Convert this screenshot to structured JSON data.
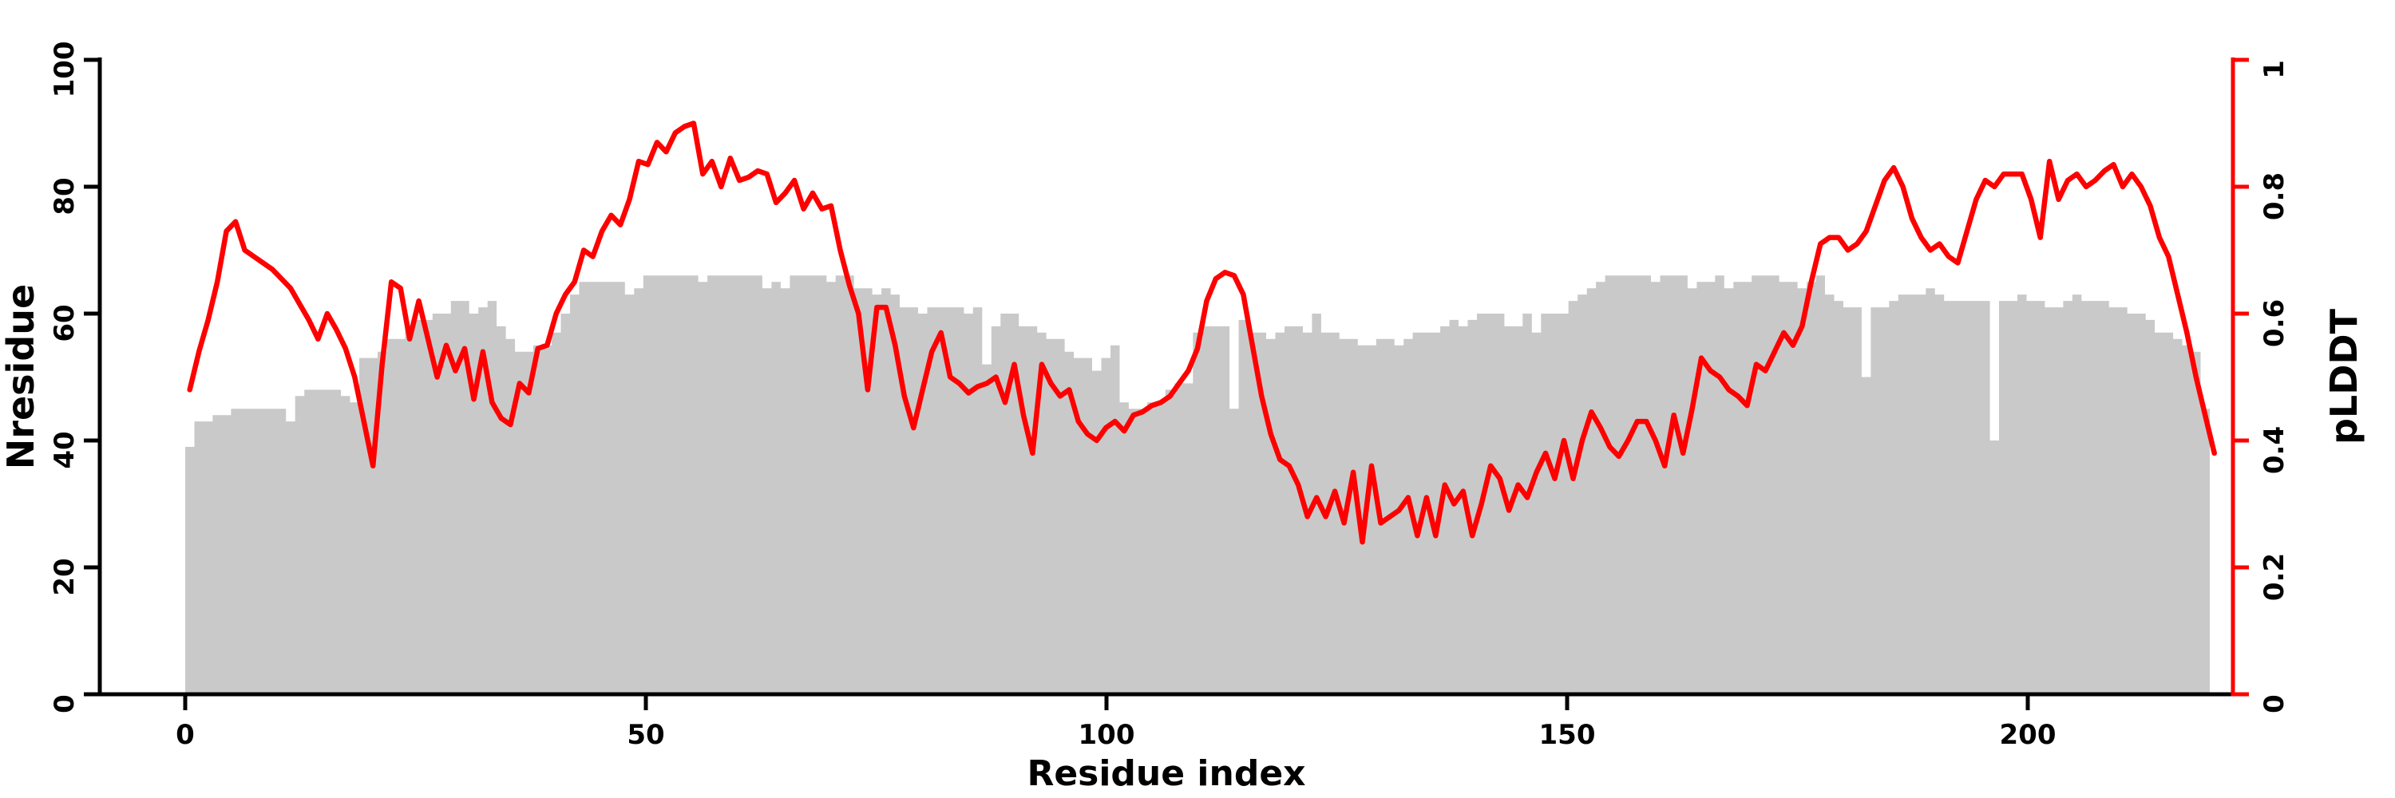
{
  "chart_data": {
    "type": "combo",
    "xlabel": "Residue index",
    "ylabel_left": "Nresidue",
    "ylabel_right": "pLDDT",
    "x_ticks": [
      0,
      50,
      100,
      150,
      200
    ],
    "y_ticks_left": [
      0,
      20,
      40,
      60,
      80,
      100
    ],
    "y_ticks_right": [
      "0",
      "0.2",
      "0.4",
      "0.6",
      "0.8",
      "1"
    ],
    "xlim": [
      0,
      222
    ],
    "ylim_left": [
      0,
      100
    ],
    "ylim_right": [
      0,
      1
    ],
    "grid": false,
    "legend": "none",
    "colors": {
      "bars": "#c9c9c9",
      "line": "#fe0000",
      "right_axis": "#fe0000",
      "axis": "#000000"
    },
    "series": [
      {
        "name": "Nresidue",
        "type": "bar",
        "axis": "left",
        "x_start": 0,
        "values": [
          39,
          43,
          43,
          44,
          44,
          45,
          45,
          45,
          45,
          45,
          45,
          43,
          47,
          48,
          48,
          48,
          48,
          47,
          46,
          53,
          53,
          54,
          56,
          56,
          58,
          59,
          59,
          60,
          60,
          62,
          62,
          60,
          61,
          62,
          58,
          56,
          54,
          54,
          55,
          55,
          57,
          60,
          63,
          65,
          65,
          65,
          65,
          65,
          63,
          64,
          66,
          66,
          66,
          66,
          66,
          66,
          65,
          66,
          66,
          66,
          66,
          66,
          66,
          64,
          65,
          64,
          66,
          66,
          66,
          66,
          65,
          66,
          66,
          64,
          64,
          63,
          64,
          63,
          61,
          61,
          60,
          61,
          61,
          61,
          61,
          60,
          61,
          52,
          58,
          60,
          60,
          58,
          58,
          57,
          56,
          56,
          54,
          53,
          53,
          51,
          53,
          55,
          46,
          45,
          45,
          46,
          46,
          48,
          49,
          49,
          57,
          58,
          58,
          58,
          45,
          59,
          57,
          57,
          56,
          57,
          58,
          58,
          57,
          60,
          57,
          57,
          56,
          56,
          55,
          55,
          56,
          56,
          55,
          56,
          57,
          57,
          57,
          58,
          59,
          58,
          59,
          60,
          60,
          60,
          58,
          58,
          60,
          57,
          60,
          60,
          60,
          62,
          63,
          64,
          65,
          66,
          66,
          66,
          66,
          66,
          65,
          66,
          66,
          66,
          64,
          65,
          65,
          66,
          64,
          65,
          65,
          66,
          66,
          66,
          65,
          65,
          64,
          65,
          66,
          63,
          62,
          61,
          61,
          50,
          61,
          61,
          62,
          63,
          63,
          63,
          64,
          63,
          62,
          62,
          62,
          62,
          62,
          40,
          62,
          62,
          63,
          62,
          62,
          61,
          61,
          62,
          63,
          62,
          62,
          62,
          61,
          61,
          60,
          60,
          59,
          57,
          57,
          56,
          55,
          54,
          45
        ]
      },
      {
        "name": "pLDDT",
        "type": "line",
        "axis": "right",
        "x_start": 0,
        "values": [
          0.48,
          0.54,
          0.59,
          0.65,
          0.73,
          0.745,
          0.7,
          0.69,
          0.68,
          0.67,
          0.655,
          0.64,
          0.615,
          0.59,
          0.56,
          0.6,
          0.575,
          0.545,
          0.5,
          0.43,
          0.36,
          0.52,
          0.65,
          0.64,
          0.56,
          0.62,
          0.56,
          0.5,
          0.55,
          0.51,
          0.545,
          0.465,
          0.54,
          0.46,
          0.435,
          0.425,
          0.49,
          0.475,
          0.545,
          0.55,
          0.6,
          0.63,
          0.65,
          0.7,
          0.69,
          0.73,
          0.755,
          0.74,
          0.78,
          0.84,
          0.835,
          0.87,
          0.855,
          0.885,
          0.895,
          0.9,
          0.82,
          0.84,
          0.8,
          0.845,
          0.81,
          0.815,
          0.825,
          0.82,
          0.775,
          0.79,
          0.81,
          0.765,
          0.79,
          0.765,
          0.77,
          0.7,
          0.645,
          0.6,
          0.48,
          0.61,
          0.61,
          0.55,
          0.47,
          0.42,
          0.48,
          0.54,
          0.57,
          0.5,
          0.49,
          0.475,
          0.485,
          0.49,
          0.5,
          0.46,
          0.52,
          0.44,
          0.38,
          0.52,
          0.49,
          0.47,
          0.48,
          0.43,
          0.41,
          0.4,
          0.42,
          0.43,
          0.415,
          0.44,
          0.445,
          0.455,
          0.46,
          0.47,
          0.49,
          0.51,
          0.545,
          0.62,
          0.655,
          0.665,
          0.66,
          0.63,
          0.55,
          0.47,
          0.41,
          0.37,
          0.36,
          0.33,
          0.28,
          0.31,
          0.28,
          0.32,
          0.27,
          0.35,
          0.24,
          0.36,
          0.27,
          0.28,
          0.29,
          0.31,
          0.25,
          0.31,
          0.25,
          0.33,
          0.3,
          0.32,
          0.25,
          0.3,
          0.36,
          0.34,
          0.29,
          0.33,
          0.31,
          0.35,
          0.38,
          0.34,
          0.4,
          0.34,
          0.4,
          0.445,
          0.42,
          0.39,
          0.375,
          0.4,
          0.43,
          0.43,
          0.4,
          0.36,
          0.44,
          0.38,
          0.45,
          0.53,
          0.51,
          0.5,
          0.48,
          0.47,
          0.455,
          0.52,
          0.51,
          0.54,
          0.57,
          0.55,
          0.58,
          0.65,
          0.71,
          0.72,
          0.72,
          0.7,
          0.71,
          0.73,
          0.77,
          0.81,
          0.83,
          0.8,
          0.75,
          0.72,
          0.7,
          0.71,
          0.69,
          0.68,
          0.73,
          0.78,
          0.81,
          0.8,
          0.82,
          0.82,
          0.82,
          0.78,
          0.72,
          0.84,
          0.78,
          0.81,
          0.82,
          0.8,
          0.81,
          0.825,
          0.835,
          0.8,
          0.82,
          0.8,
          0.77,
          0.72,
          0.69,
          0.63,
          0.57,
          0.5,
          0.44,
          0.38
        ]
      }
    ]
  }
}
